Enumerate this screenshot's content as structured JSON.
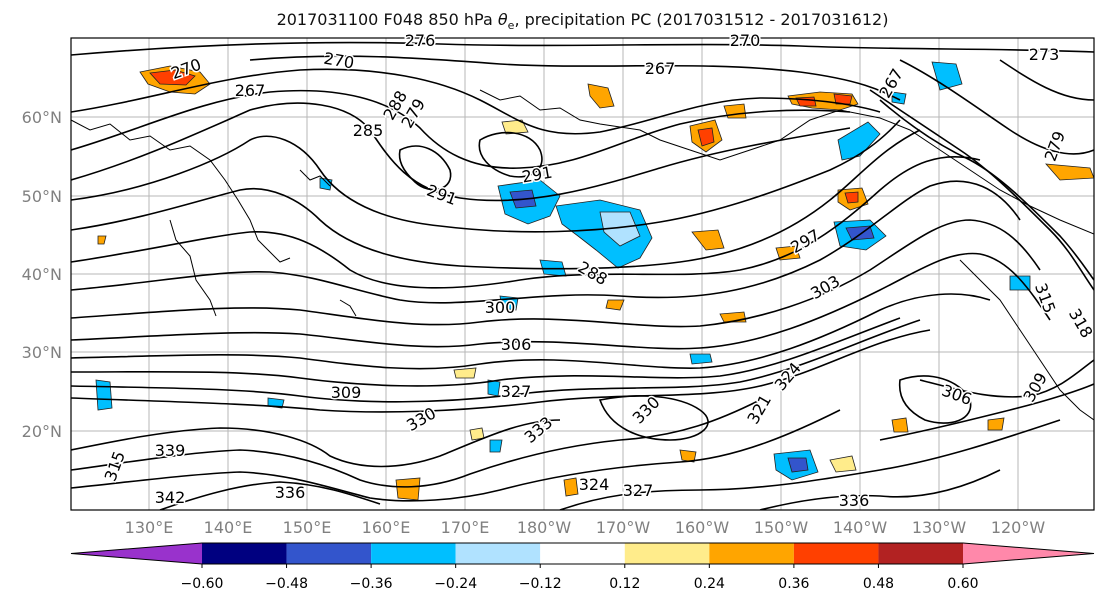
{
  "header": {
    "title_prefix": "2017031100 F048 850 hPa",
    "title_theta": "θ",
    "title_sub": "e",
    "title_suffix": ", precipitation PC (2017031512 - 2017031612)"
  },
  "map": {
    "lat_labels": [
      "60°N",
      "50°N",
      "40°N",
      "30°N",
      "20°N"
    ],
    "lon_labels": [
      "130°E",
      "140°E",
      "150°E",
      "160°E",
      "170°E",
      "180°W",
      "170°W",
      "160°W",
      "150°W",
      "140°W",
      "130°W",
      "120°W"
    ],
    "contour_labels": [
      "270",
      "267",
      "270",
      "276",
      "267",
      "270",
      "279",
      "288",
      "291",
      "291",
      "285",
      "297",
      "288",
      "300",
      "303",
      "306",
      "309",
      "327",
      "324",
      "321",
      "330",
      "333",
      "330",
      "306",
      "309",
      "339",
      "315",
      "342",
      "336",
      "327",
      "324",
      "336",
      "279",
      "267",
      "273",
      "315",
      "318"
    ]
  },
  "colorbar": {
    "colors": [
      "#9932cc",
      "#000080",
      "#3355cc",
      "#00bfff",
      "#b0e2ff",
      "#ffffff",
      "#ffec8b",
      "#ffa500",
      "#ff4000",
      "#b22222",
      "#ff88aa"
    ],
    "tick_labels": [
      "−0.60",
      "−0.48",
      "−0.36",
      "−0.24",
      "−0.12",
      "0.12",
      "0.24",
      "0.36",
      "0.48",
      "0.60"
    ]
  }
}
